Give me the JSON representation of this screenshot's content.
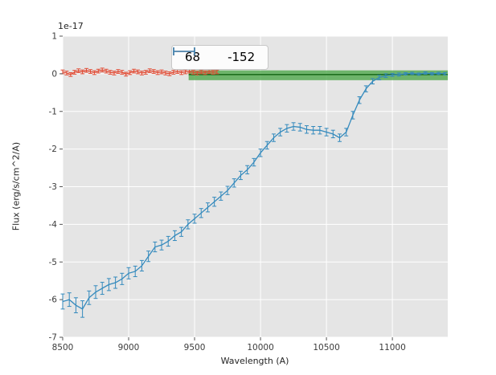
{
  "chart_data": {
    "type": "line",
    "title": "",
    "xlabel": "Wavelength (A)",
    "ylabel": "Flux (erg/s/cm^2/A)",
    "offset_text": "1e-17",
    "xlim": [
      8500,
      11420
    ],
    "ylim": [
      -7,
      1
    ],
    "x_ticks": [
      8500,
      9000,
      9500,
      10000,
      10500,
      11000
    ],
    "y_ticks": [
      -7,
      -6,
      -5,
      -4,
      -3,
      -2,
      -1,
      0,
      1
    ],
    "grid": true,
    "colors": {
      "axes_bg": "#e5e5e5",
      "grid": "#ffffff",
      "tick": "#555555",
      "tick_label": "#3c3c3c"
    },
    "legend": {
      "position": "upper center",
      "entries": [
        {
          "label": "68",
          "color": "#e24a33"
        },
        {
          "label": "-152",
          "color": "#348abd"
        }
      ]
    },
    "band": {
      "x0": 9455,
      "x1": 11420,
      "y0": -0.17,
      "y1": 0.09,
      "fill": "#44a340",
      "opacity": 0.75,
      "line_y": -0.02,
      "line_color": "#1f6f1f"
    },
    "series": [
      {
        "name": "68",
        "color": "#e24a33",
        "x": [
          8500,
          8530,
          8560,
          8590,
          8620,
          8650,
          8680,
          8710,
          8740,
          8770,
          8800,
          8830,
          8860,
          8890,
          8920,
          8950,
          8980,
          9010,
          9040,
          9070,
          9100,
          9130,
          9160,
          9190,
          9220,
          9250,
          9280,
          9310,
          9340,
          9370,
          9400,
          9430,
          9460,
          9490,
          9520,
          9550,
          9580,
          9610,
          9640,
          9670
        ],
        "y": [
          0.05,
          0.02,
          -0.02,
          0.04,
          0.08,
          0.05,
          0.09,
          0.06,
          0.03,
          0.07,
          0.1,
          0.07,
          0.04,
          0.02,
          0.06,
          0.04,
          -0.01,
          0.03,
          0.07,
          0.05,
          0.02,
          0.04,
          0.08,
          0.06,
          0.03,
          0.05,
          0.02,
          0.0,
          0.04,
          0.06,
          0.03,
          0.05,
          0.07,
          0.04,
          0.02,
          0.05,
          0.03,
          0.06,
          0.04,
          0.05
        ],
        "yerr": 0.05
      },
      {
        "name": "-152",
        "color": "#348abd",
        "x": [
          8500,
          8550,
          8600,
          8650,
          8700,
          8750,
          8800,
          8850,
          8900,
          8950,
          9000,
          9050,
          9100,
          9150,
          9200,
          9250,
          9300,
          9350,
          9400,
          9450,
          9500,
          9550,
          9600,
          9650,
          9700,
          9750,
          9800,
          9850,
          9900,
          9950,
          10000,
          10050,
          10100,
          10150,
          10200,
          10250,
          10300,
          10350,
          10400,
          10450,
          10500,
          10550,
          10600,
          10650,
          10700,
          10750,
          10800,
          10850,
          10900,
          10950,
          11000,
          11050,
          11100,
          11150,
          11200,
          11250,
          11300,
          11350,
          11400
        ],
        "y": [
          -6.05,
          -6.0,
          -6.15,
          -6.25,
          -5.95,
          -5.8,
          -5.7,
          -5.6,
          -5.55,
          -5.45,
          -5.3,
          -5.25,
          -5.1,
          -4.85,
          -4.6,
          -4.55,
          -4.45,
          -4.3,
          -4.2,
          -4.0,
          -3.85,
          -3.7,
          -3.55,
          -3.4,
          -3.25,
          -3.1,
          -2.9,
          -2.7,
          -2.55,
          -2.35,
          -2.1,
          -1.9,
          -1.7,
          -1.55,
          -1.45,
          -1.4,
          -1.42,
          -1.48,
          -1.5,
          -1.5,
          -1.55,
          -1.6,
          -1.7,
          -1.55,
          -1.1,
          -0.7,
          -0.4,
          -0.2,
          -0.1,
          -0.05,
          -0.03,
          -0.02,
          0.0,
          0.01,
          -0.01,
          0.02,
          0.0,
          0.01,
          0.0
        ],
        "yerr": [
          0.2,
          0.18,
          0.2,
          0.22,
          0.18,
          0.17,
          0.16,
          0.16,
          0.15,
          0.15,
          0.15,
          0.14,
          0.14,
          0.14,
          0.13,
          0.13,
          0.13,
          0.13,
          0.12,
          0.12,
          0.12,
          0.12,
          0.12,
          0.12,
          0.11,
          0.11,
          0.11,
          0.11,
          0.11,
          0.1,
          0.1,
          0.1,
          0.1,
          0.1,
          0.1,
          0.1,
          0.1,
          0.1,
          0.1,
          0.1,
          0.1,
          0.1,
          0.1,
          0.1,
          0.1,
          0.09,
          0.08,
          0.07,
          0.06,
          0.05,
          0.04,
          0.04,
          0.03,
          0.03,
          0.03,
          0.03,
          0.03,
          0.03,
          0.03
        ]
      }
    ]
  }
}
